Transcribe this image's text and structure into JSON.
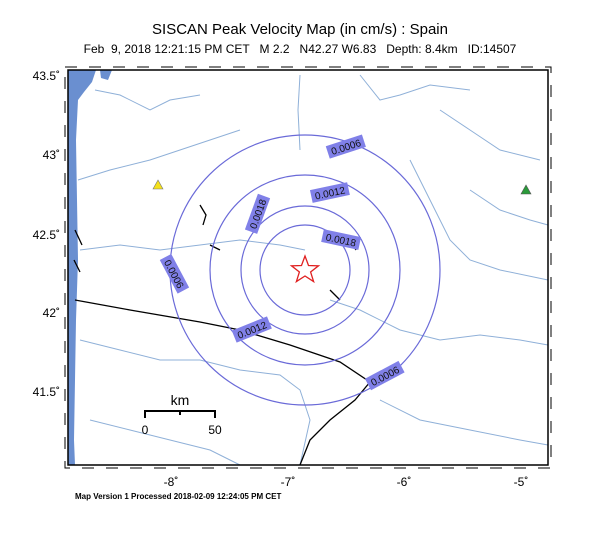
{
  "header": {
    "title": "SISCAN Peak Velocity Map (in cm/s) : Spain",
    "subtitle": "Feb  9, 2018 12:21:15 PM CET   M 2.2   N42.27 W6.83   Depth: 8.4km   ID:14507"
  },
  "map": {
    "lat_labels": [
      "43.5˚",
      "43˚",
      "42.5˚",
      "42˚",
      "41.5˚"
    ],
    "lon_labels": [
      "-8˚",
      "-7˚",
      "-6˚",
      "-5˚"
    ],
    "contour_labels": [
      "0.0006",
      "0.0012",
      "0.0018",
      "0.0018",
      "0.0012",
      "0.0006",
      "0.0006"
    ],
    "scale": {
      "unit": "km",
      "start": 0,
      "end": 50
    }
  },
  "footer": "Map Version 1 Processed 2018-02-09 12:24:05 PM CET"
}
